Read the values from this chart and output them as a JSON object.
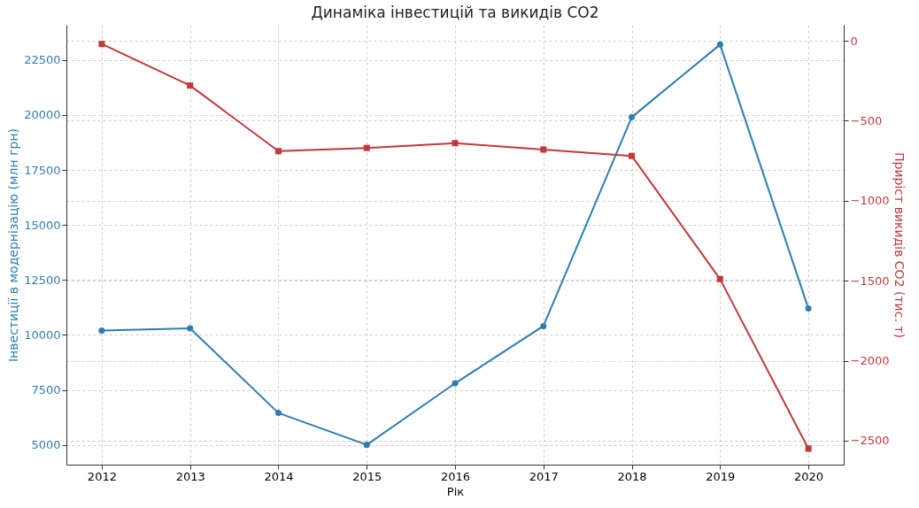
{
  "chart_data": {
    "type": "line",
    "title": "Динаміка інвестицій та викидів CO2",
    "xlabel": "Рік",
    "ylabel": "Інвестиції в модернізацію (млн грн)",
    "y2label": "Приріст викидів CO2 (тис. т)",
    "categories": [
      "2012",
      "2013",
      "2014",
      "2015",
      "2016",
      "2017",
      "2018",
      "2019",
      "2020"
    ],
    "series": [
      {
        "color": "#2e7ead",
        "marker": "circle",
        "values": [
          10200,
          10300,
          6450,
          5000,
          7800,
          10400,
          19900,
          23200,
          11200
        ]
      },
      {
        "color": "#c0393b",
        "marker": "square",
        "axis": "y2",
        "values": [
          -20,
          -280,
          -690,
          -670,
          -640,
          -680,
          -720,
          -1490,
          -2550
        ]
      }
    ],
    "ylim": [
      4100,
      24100
    ],
    "yticks": [
      5000,
      7500,
      10000,
      12500,
      15000,
      17500,
      20000,
      22500
    ],
    "y2lim": [
      -2650,
      100
    ],
    "y2ticks": [
      -2500,
      -2000,
      -1500,
      -1000,
      -500,
      0
    ],
    "grid": true
  }
}
